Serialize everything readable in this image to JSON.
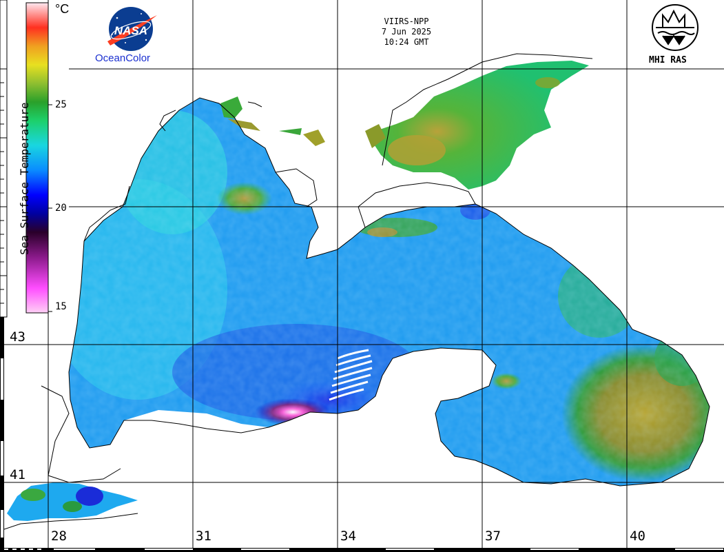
{
  "header": {
    "satellite": "VIIRS-NPP",
    "date": "7 Jun 2025",
    "time": "10:24 GMT"
  },
  "logos": {
    "nasa_text": "NASA",
    "oceancolor_label": "OceanColor",
    "mhi_label": "MHI RAS"
  },
  "colorbar": {
    "title": "Sea Surface Temperature",
    "unit": "°C",
    "ticks": [
      "25",
      "20",
      "15"
    ],
    "min": 15,
    "max": 30
  },
  "grid": {
    "latitudes": [
      "43",
      "41"
    ],
    "longitudes": [
      "28",
      "31",
      "34",
      "37",
      "40"
    ]
  },
  "colors": {
    "cold": "#ff66ff",
    "cool": "#0000c0",
    "mid": "#1fa8ff",
    "warm_green": "#33b02a",
    "warm_olive": "#a79a2a",
    "land": "#ffffff",
    "nasa_blue": "#0b3d91",
    "nasa_red": "#fc3d21"
  }
}
